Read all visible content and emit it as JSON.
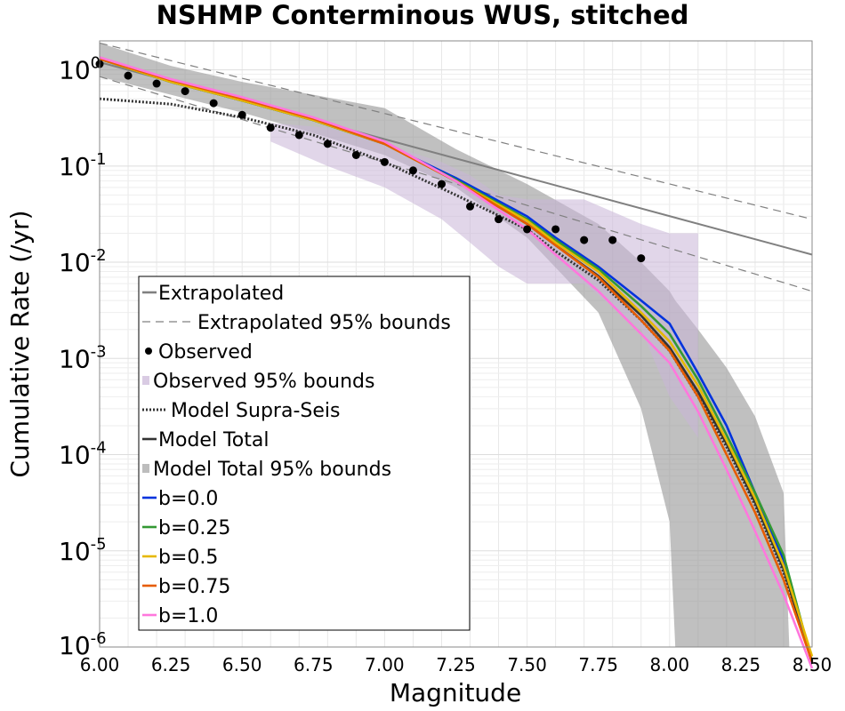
{
  "chart_data": {
    "type": "line",
    "title": "NSHMP Conterminous WUS, stitched",
    "xlabel": "Magnitude",
    "ylabel": "Cumulative Rate (/yr)",
    "xlim": [
      6.0,
      8.5
    ],
    "ylim": [
      1e-06,
      2
    ],
    "yscale": "log",
    "grid": true,
    "legend_position": "lower-left",
    "xticks": [
      "6.00",
      "6.25",
      "6.50",
      "6.75",
      "7.00",
      "7.25",
      "7.50",
      "7.75",
      "8.00",
      "8.25",
      "8.50"
    ],
    "yticks": [
      {
        "base": "10",
        "exp": "0",
        "value": 1
      },
      {
        "base": "10",
        "exp": "-1",
        "value": 0.1
      },
      {
        "base": "10",
        "exp": "-2",
        "value": 0.01
      },
      {
        "base": "10",
        "exp": "-3",
        "value": 0.001
      },
      {
        "base": "10",
        "exp": "-4",
        "value": 0.0001
      },
      {
        "base": "10",
        "exp": "-5",
        "value": 1e-05
      },
      {
        "base": "10",
        "exp": "-6",
        "value": 1e-06
      }
    ],
    "observed": {
      "x": [
        6.0,
        6.1,
        6.2,
        6.3,
        6.4,
        6.5,
        6.6,
        6.7,
        6.8,
        6.9,
        7.0,
        7.1,
        7.2,
        7.3,
        7.4,
        7.5,
        7.6,
        7.7,
        7.8,
        7.9
      ],
      "y": [
        1.15,
        0.87,
        0.72,
        0.6,
        0.45,
        0.34,
        0.25,
        0.21,
        0.17,
        0.13,
        0.11,
        0.09,
        0.065,
        0.038,
        0.028,
        0.022,
        0.022,
        0.017,
        0.017,
        0.011
      ]
    },
    "observed_bounds": {
      "x": [
        6.6,
        6.8,
        7.0,
        7.2,
        7.3,
        7.4,
        7.5,
        7.7,
        7.9,
        8.0,
        8.1
      ],
      "lower": [
        0.18,
        0.1,
        0.06,
        0.028,
        0.016,
        0.009,
        0.006,
        0.006,
        0.002,
        0.0004,
        0.00015
      ],
      "upper": [
        0.28,
        0.25,
        0.17,
        0.11,
        0.08,
        0.05,
        0.045,
        0.045,
        0.025,
        0.02,
        0.02
      ]
    },
    "model_total_bounds": {
      "x": [
        6.0,
        6.25,
        6.5,
        6.75,
        7.0,
        7.25,
        7.5,
        7.75,
        7.9,
        8.0,
        8.02,
        8.1,
        8.2,
        8.3,
        8.4,
        8.42,
        8.5
      ],
      "lower": [
        0.85,
        0.55,
        0.36,
        0.22,
        0.13,
        0.06,
        0.018,
        0.003,
        0.0003,
        2e-05,
        1e-06,
        1e-06,
        1e-06,
        1e-06,
        1e-06,
        1e-06,
        1e-06
      ],
      "upper": [
        1.9,
        1.1,
        0.75,
        0.55,
        0.4,
        0.15,
        0.065,
        0.025,
        0.01,
        0.005,
        0.004,
        0.002,
        0.0008,
        0.00025,
        4e-05,
        1e-06,
        1e-06
      ]
    },
    "series": [
      {
        "name": "Extrapolated",
        "color": "#808080",
        "dash": "solid",
        "x": [
          6.0,
          8.5
        ],
        "y": [
          1.2,
          0.012
        ]
      },
      {
        "name": "Extrapolated 95% bounds",
        "color": "#808080",
        "dash": "dashed",
        "x": [
          6.0,
          8.5
        ],
        "y": [
          1.9,
          0.028
        ]
      },
      {
        "name": "",
        "color": "#808080",
        "dash": "dashed",
        "x": [
          6.0,
          8.5
        ],
        "y": [
          0.85,
          0.005
        ]
      },
      {
        "name": "Model Supra-Seis",
        "color": "#333333",
        "dash": "dotted",
        "x": [
          6.0,
          6.25,
          6.5,
          6.75,
          7.0,
          7.25,
          7.5,
          7.6,
          7.75,
          7.9,
          8.0,
          8.1,
          8.2,
          8.3,
          8.4,
          8.5
        ],
        "y": [
          0.5,
          0.44,
          0.32,
          0.21,
          0.11,
          0.05,
          0.022,
          0.013,
          0.0065,
          0.0025,
          0.0012,
          0.0004,
          0.00012,
          3e-05,
          6e-06,
          7e-07
        ]
      },
      {
        "name": "Model Total",
        "color": "#333333",
        "dash": "solid",
        "x": [
          6.0,
          6.25,
          6.5,
          6.75,
          7.0,
          7.25,
          7.5,
          7.6,
          7.75,
          7.9,
          8.0,
          8.1,
          8.2,
          8.3,
          8.4,
          8.5
        ],
        "y": [
          1.3,
          0.75,
          0.48,
          0.3,
          0.17,
          0.07,
          0.025,
          0.015,
          0.0072,
          0.0028,
          0.0013,
          0.00045,
          0.00013,
          3.2e-05,
          6.5e-06,
          7e-07
        ]
      },
      {
        "name": "b=0.0",
        "color": "#0033dd",
        "dash": "solid",
        "x": [
          6.0,
          6.25,
          6.5,
          6.75,
          7.0,
          7.25,
          7.5,
          7.6,
          7.75,
          7.9,
          8.0,
          8.1,
          8.2,
          8.3,
          8.4,
          8.5
        ],
        "y": [
          1.3,
          0.75,
          0.48,
          0.3,
          0.17,
          0.075,
          0.03,
          0.018,
          0.009,
          0.004,
          0.0023,
          0.0007,
          0.0002,
          4e-05,
          8e-06,
          7e-07
        ]
      },
      {
        "name": "b=0.25",
        "color": "#339933",
        "dash": "solid",
        "x": [
          6.0,
          6.25,
          6.5,
          6.75,
          7.0,
          7.25,
          7.5,
          7.6,
          7.75,
          7.9,
          8.0,
          8.1,
          8.2,
          8.3,
          8.4,
          8.5
        ],
        "y": [
          1.3,
          0.75,
          0.48,
          0.3,
          0.17,
          0.072,
          0.028,
          0.017,
          0.0085,
          0.0035,
          0.0018,
          0.0006,
          0.00016,
          4e-05,
          9e-06,
          7e-07
        ]
      },
      {
        "name": "b=0.5",
        "color": "#e6b800",
        "dash": "solid",
        "x": [
          6.0,
          6.25,
          6.5,
          6.75,
          7.0,
          7.25,
          7.5,
          7.6,
          7.75,
          7.9,
          8.0,
          8.1,
          8.2,
          8.3,
          8.4,
          8.5
        ],
        "y": [
          1.3,
          0.75,
          0.48,
          0.3,
          0.17,
          0.07,
          0.027,
          0.016,
          0.008,
          0.003,
          0.0015,
          0.00052,
          0.00014,
          3.5e-05,
          7e-06,
          8e-07
        ]
      },
      {
        "name": "b=0.75",
        "color": "#e65c00",
        "dash": "solid",
        "x": [
          6.0,
          6.25,
          6.5,
          6.75,
          7.0,
          7.25,
          7.5,
          7.6,
          7.75,
          7.9,
          8.0,
          8.1,
          8.2,
          8.3,
          8.4,
          8.5
        ],
        "y": [
          1.3,
          0.78,
          0.5,
          0.31,
          0.17,
          0.07,
          0.025,
          0.015,
          0.007,
          0.0025,
          0.0012,
          0.0004,
          0.0001,
          2.5e-05,
          5e-06,
          7e-07
        ]
      },
      {
        "name": "b=1.0",
        "color": "#ff77dd",
        "dash": "solid",
        "x": [
          6.0,
          6.25,
          6.5,
          6.75,
          7.0,
          7.25,
          7.5,
          7.6,
          7.75,
          7.9,
          8.0,
          8.1,
          8.2,
          8.3,
          8.4,
          8.5
        ],
        "y": [
          1.35,
          0.8,
          0.52,
          0.32,
          0.18,
          0.07,
          0.022,
          0.012,
          0.005,
          0.0018,
          0.0009,
          0.00028,
          7e-05,
          1.6e-05,
          3.5e-06,
          6e-07
        ]
      }
    ],
    "legend": [
      {
        "label": "Extrapolated",
        "kind": "line",
        "color": "#808080",
        "dash": "solid"
      },
      {
        "label": "Extrapolated 95% bounds",
        "kind": "line",
        "color": "#808080",
        "dash": "dashed"
      },
      {
        "label": "Observed",
        "kind": "dot",
        "color": "#000000"
      },
      {
        "label": "Observed 95% bounds",
        "kind": "box",
        "color": "#d9cbe3"
      },
      {
        "label": "Model Supra-Seis",
        "kind": "line",
        "color": "#333333",
        "dash": "dotted"
      },
      {
        "label": "Model Total",
        "kind": "line",
        "color": "#333333",
        "dash": "solid"
      },
      {
        "label": "Model Total 95% bounds",
        "kind": "box",
        "color": "#bdbdbd"
      },
      {
        "label": "b=0.0",
        "kind": "line",
        "color": "#0033dd",
        "dash": "solid"
      },
      {
        "label": "b=0.25",
        "kind": "line",
        "color": "#339933",
        "dash": "solid"
      },
      {
        "label": "b=0.5",
        "kind": "line",
        "color": "#e6b800",
        "dash": "solid"
      },
      {
        "label": "b=0.75",
        "kind": "line",
        "color": "#e65c00",
        "dash": "solid"
      },
      {
        "label": "b=1.0",
        "kind": "line",
        "color": "#ff77dd",
        "dash": "solid"
      }
    ]
  }
}
